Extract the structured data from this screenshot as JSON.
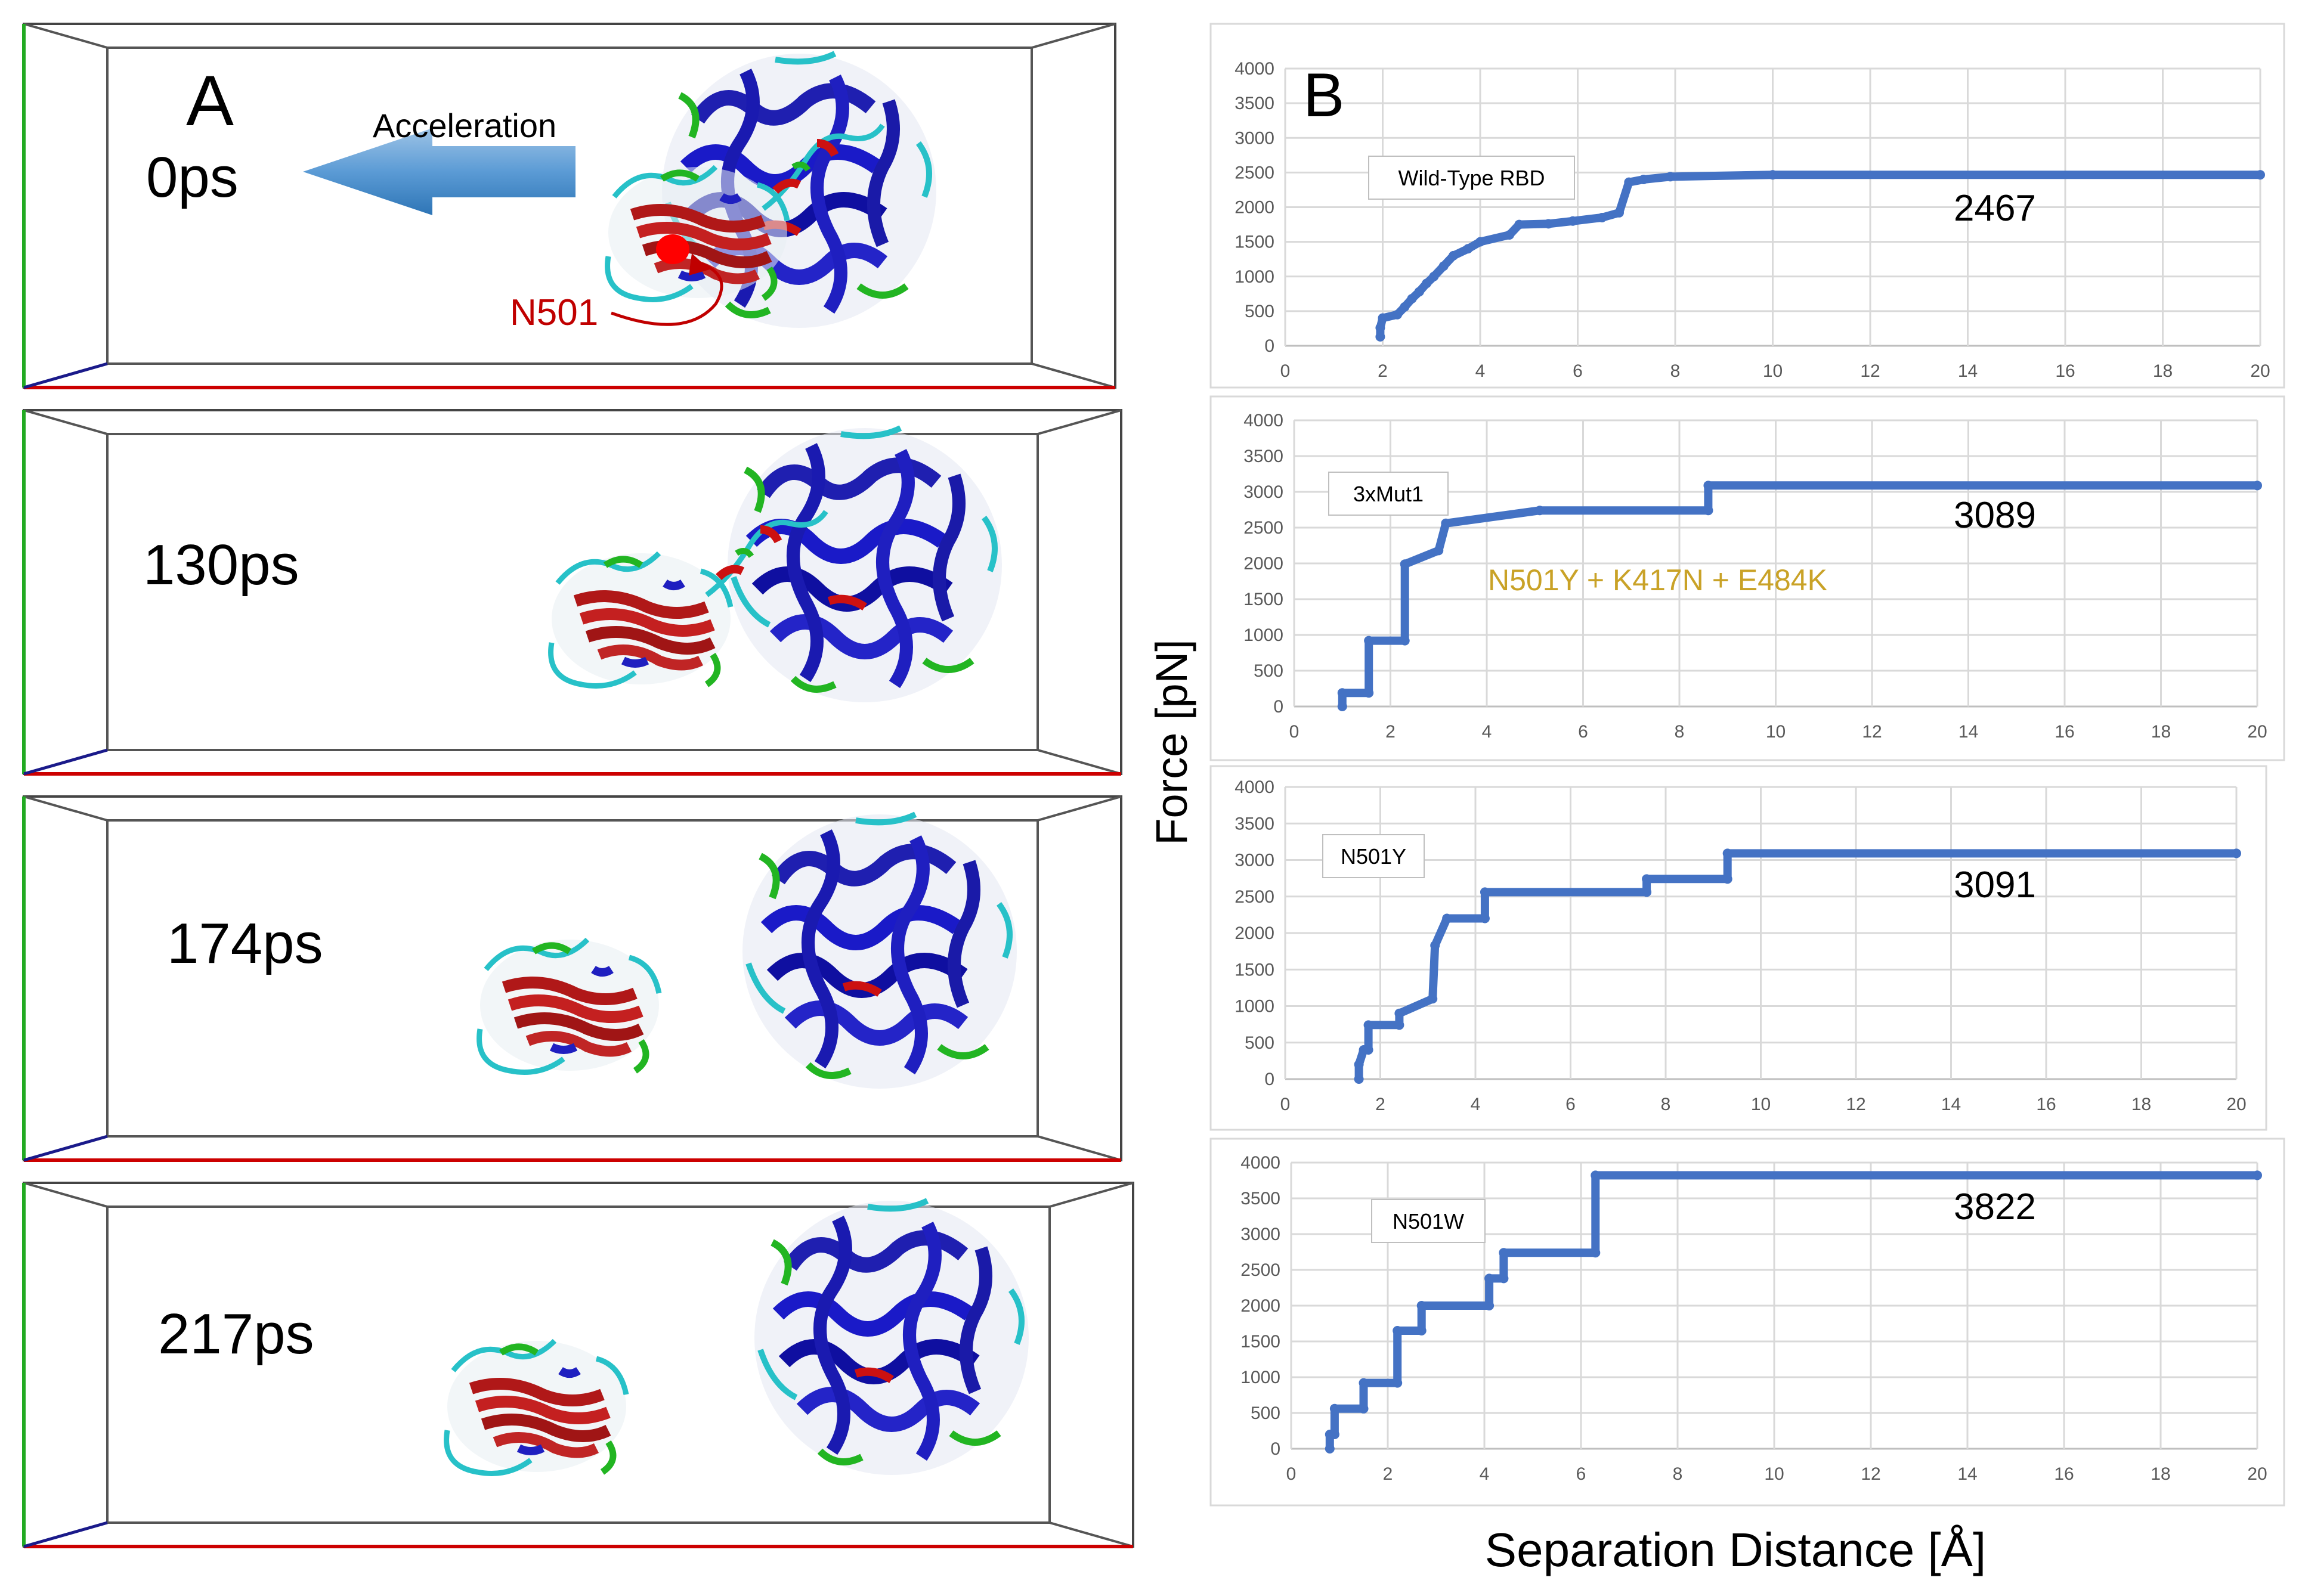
{
  "panel_a": {
    "label": "A",
    "arrow_label": "Acceleration",
    "residue_label": "N501",
    "frames": [
      {
        "time": "0ps"
      },
      {
        "time": "130ps"
      },
      {
        "time": "174ps"
      },
      {
        "time": "217ps"
      }
    ],
    "colors": {
      "arrow": "#5b9bd5",
      "residue": "#c00000",
      "box_x": "#cc0000",
      "box_y": "#22aa22"
    }
  },
  "panel_b": {
    "label": "B",
    "ylabel": "Force [pN]",
    "xlabel": "Separation Distance [Å]"
  },
  "chart_data": [
    {
      "type": "line",
      "title": "Wild-Type RBD",
      "max_label": "2467",
      "xlim": [
        0,
        20
      ],
      "ylim": [
        0,
        4000
      ],
      "xticks": [
        "0",
        "2",
        "4",
        "6",
        "8",
        "10",
        "12",
        "14",
        "16",
        "18",
        "20"
      ],
      "yticks": [
        "0",
        "500",
        "1000",
        "1500",
        "2000",
        "2500",
        "3000",
        "3500",
        "4000"
      ],
      "series": [
        {
          "name": "Wild-Type RBD",
          "color": "#4472c4",
          "x": [
            1.95,
            1.95,
            2.0,
            2.3,
            2.45,
            2.6,
            2.75,
            2.9,
            3.05,
            3.25,
            3.45,
            3.75,
            4.0,
            4.6,
            4.8,
            5.4,
            5.9,
            6.5,
            6.85,
            7.05,
            7.35,
            7.9,
            10.0,
            20.0
          ],
          "y": [
            130,
            260,
            400,
            450,
            560,
            680,
            780,
            900,
            1000,
            1150,
            1300,
            1400,
            1500,
            1600,
            1750,
            1760,
            1800,
            1850,
            1920,
            2360,
            2400,
            2440,
            2467,
            2467
          ]
        }
      ]
    },
    {
      "type": "line",
      "title": "3xMut1",
      "subtitle": "N501Y + K417N + E484K",
      "max_label": "3089",
      "xlim": [
        0,
        20
      ],
      "ylim": [
        0,
        4000
      ],
      "xticks": [
        "0",
        "2",
        "4",
        "6",
        "8",
        "10",
        "12",
        "14",
        "16",
        "18",
        "20"
      ],
      "yticks": [
        "0",
        "500",
        "1000",
        "1500",
        "2000",
        "2500",
        "3000",
        "3500",
        "4000"
      ],
      "series": [
        {
          "name": "3xMut1",
          "color": "#4472c4",
          "x": [
            1.0,
            1.0,
            1.55,
            1.55,
            2.3,
            2.3,
            3.0,
            3.15,
            5.1,
            8.6,
            8.6,
            20.0
          ],
          "y": [
            0,
            190,
            190,
            920,
            920,
            1990,
            2180,
            2560,
            2740,
            2740,
            3089,
            3089
          ]
        }
      ]
    },
    {
      "type": "line",
      "title": "N501Y",
      "max_label": "3091",
      "xlim": [
        0,
        20
      ],
      "ylim": [
        0,
        4000
      ],
      "xticks": [
        "0",
        "2",
        "4",
        "6",
        "8",
        "10",
        "12",
        "14",
        "16",
        "18",
        "20"
      ],
      "yticks": [
        "0",
        "500",
        "1000",
        "1500",
        "2000",
        "2500",
        "3000",
        "3500",
        "4000"
      ],
      "series": [
        {
          "name": "N501Y",
          "color": "#4472c4",
          "x": [
            1.55,
            1.55,
            1.65,
            1.75,
            1.75,
            2.4,
            2.4,
            3.1,
            3.15,
            3.4,
            4.2,
            4.2,
            7.6,
            7.6,
            9.3,
            9.3,
            20.0
          ],
          "y": [
            0,
            200,
            400,
            400,
            740,
            740,
            900,
            1100,
            1830,
            2200,
            2200,
            2560,
            2560,
            2740,
            2740,
            3091,
            3091
          ]
        }
      ]
    },
    {
      "type": "line",
      "title": "N501W",
      "max_label": "3822",
      "xlim": [
        0,
        20
      ],
      "ylim": [
        0,
        4000
      ],
      "xticks": [
        "0",
        "2",
        "4",
        "6",
        "8",
        "10",
        "12",
        "14",
        "16",
        "18",
        "20"
      ],
      "yticks": [
        "0",
        "500",
        "1000",
        "1500",
        "2000",
        "2500",
        "3000",
        "3500",
        "4000"
      ],
      "series": [
        {
          "name": "N501W",
          "color": "#4472c4",
          "x": [
            0.8,
            0.8,
            0.9,
            0.9,
            1.5,
            1.5,
            2.2,
            2.2,
            2.7,
            2.7,
            4.1,
            4.1,
            4.4,
            4.4,
            6.3,
            6.3,
            20.0
          ],
          "y": [
            0,
            200,
            200,
            560,
            560,
            920,
            920,
            1650,
            1650,
            2000,
            2000,
            2380,
            2380,
            2740,
            2740,
            3822,
            3822
          ]
        }
      ]
    }
  ]
}
